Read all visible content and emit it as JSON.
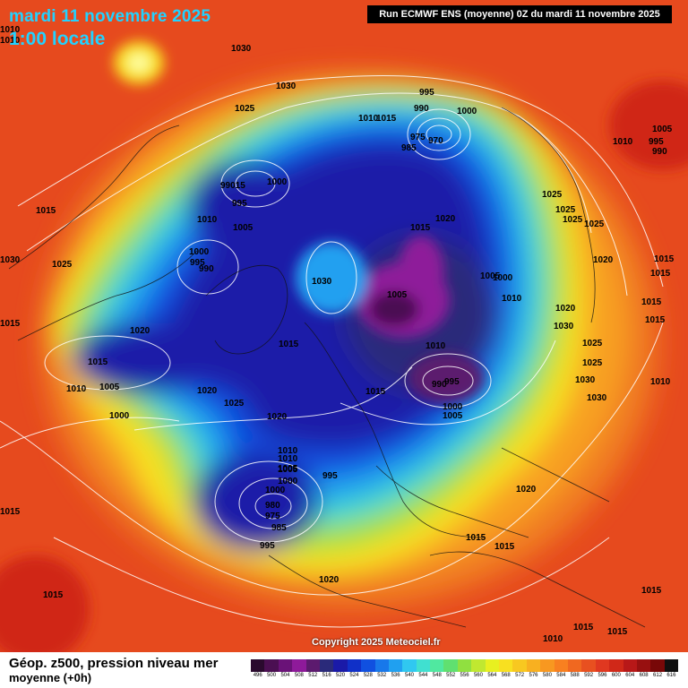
{
  "header": {
    "date_line": "mardi 11 novembre 2025",
    "time_line": "1:00 locale",
    "run_info": "Run ECMWF ENS (moyenne) 0Z du mardi 11 novembre 2025"
  },
  "map": {
    "copyright": "Copyright 2025 Meteociel.fr",
    "pressure_labels": [
      "1010",
      "1030",
      "1025",
      "1030",
      "995",
      "990",
      "1000",
      "975",
      "970",
      "985",
      "1010",
      "1015",
      "99015",
      "1000",
      "995",
      "1010",
      "1005",
      "1015",
      "1020",
      "1015",
      "1025",
      "1000",
      "995",
      "990",
      "1030",
      "1005",
      "1000",
      "1010",
      "1005",
      "1015",
      "1020",
      "1015",
      "1010",
      "1005",
      "1000",
      "1020",
      "1025",
      "1020",
      "1030",
      "1015",
      "1015",
      "1010",
      "1005",
      "1000",
      "995",
      "990",
      "980",
      "975",
      "985",
      "995",
      "1000",
      "1005",
      "1010",
      "1010",
      "995",
      "1000",
      "1005",
      "1015",
      "1020",
      "1020",
      "1015",
      "1015",
      "1010",
      "1025",
      "1025",
      "1025",
      "1025",
      "1020",
      "1015",
      "1020",
      "1015",
      "1030",
      "1025",
      "1025",
      "1030",
      "1030",
      "1005",
      "995",
      "990",
      "1010",
      "1010",
      "1015",
      "1015",
      "1015",
      "1015",
      "1010",
      "1015",
      "1015",
      "1020"
    ]
  },
  "footer": {
    "title": "Géop. z500, pression niveau mer",
    "subtitle": "moyenne  (+0h)"
  },
  "legend": {
    "values": [
      "496",
      "500",
      "504",
      "508",
      "512",
      "516",
      "520",
      "524",
      "528",
      "532",
      "536",
      "540",
      "544",
      "548",
      "552",
      "556",
      "560",
      "564",
      "568",
      "572",
      "576",
      "580",
      "584",
      "588",
      "592",
      "596",
      "600",
      "604",
      "608",
      "612",
      "616"
    ],
    "colors": [
      "#2a0a2e",
      "#4b0f52",
      "#6a1278",
      "#8e1a9a",
      "#5c1a6e",
      "#2a2a7a",
      "#1a1aa8",
      "#1030c8",
      "#1050e0",
      "#1878ea",
      "#20a0f0",
      "#30c8f0",
      "#40e0d0",
      "#50e8a0",
      "#60e070",
      "#90e040",
      "#c0e830",
      "#e8f020",
      "#f8e020",
      "#f8c820",
      "#f8b020",
      "#f89820",
      "#f88020",
      "#f06820",
      "#e85020",
      "#e03820",
      "#d02818",
      "#b81818",
      "#981010",
      "#780808",
      "#101010"
    ]
  }
}
